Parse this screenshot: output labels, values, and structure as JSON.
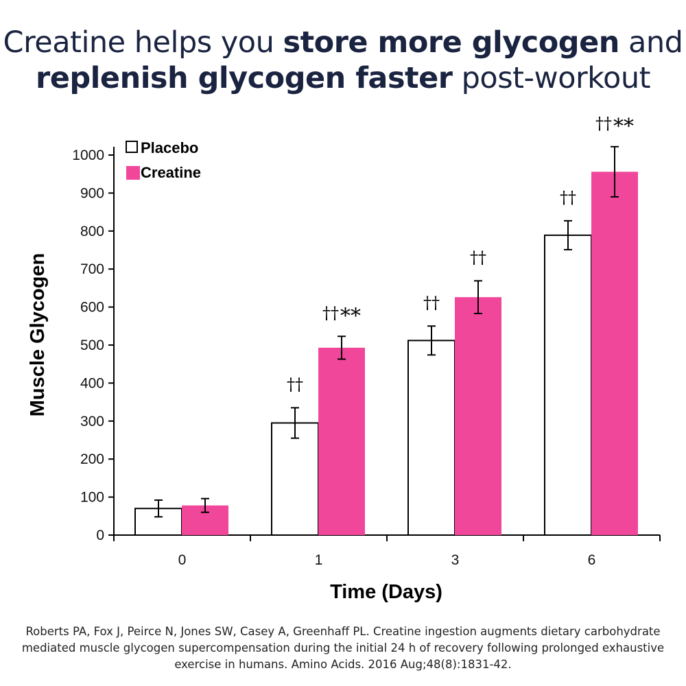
{
  "headline": {
    "part1": "Creatine helps you ",
    "bold1": "store more glycogen",
    "part2": " and",
    "bold2": "replenish glycogen faster",
    "part3": " post-workout"
  },
  "citation": "Roberts PA, Fox J, Peirce N, Jones SW, Casey A, Greenhaff PL. Creatine ingestion augments dietary carbohydrate mediated muscle glycogen supercompensation during the initial 24 h of recovery following prolonged exhaustive exercise in humans. Amino Acids. 2016 Aug;48(8):1831-42.",
  "colors": {
    "creatine": "#f0479b",
    "placebo": "#ffffff",
    "headline": "#1a2340"
  },
  "chart_data": {
    "type": "bar",
    "title": "",
    "xlabel": "Time (Days)",
    "ylabel": "Muscle Glycogen",
    "categories": [
      "0",
      "1",
      "3",
      "6"
    ],
    "ylim": [
      0,
      1000
    ],
    "yticks": [
      0,
      100,
      200,
      300,
      400,
      500,
      600,
      700,
      800,
      900,
      1000
    ],
    "legend_position": "top-left",
    "grid": false,
    "series": [
      {
        "name": "Placebo",
        "color": "#ffffff",
        "values": [
          70,
          295,
          512,
          789
        ],
        "errors": [
          22,
          40,
          38,
          38
        ]
      },
      {
        "name": "Creatine",
        "color": "#f0479b",
        "values": [
          78,
          493,
          626,
          956
        ],
        "errors": [
          18,
          30,
          43,
          66
        ]
      }
    ],
    "annotations": [
      {
        "category": "1",
        "series": "Placebo",
        "text": "††"
      },
      {
        "category": "1",
        "series": "Creatine",
        "text": "††**"
      },
      {
        "category": "3",
        "series": "Placebo",
        "text": "††"
      },
      {
        "category": "3",
        "series": "Creatine",
        "text": "††"
      },
      {
        "category": "6",
        "series": "Placebo",
        "text": "††"
      },
      {
        "category": "6",
        "series": "Creatine",
        "text": "††**"
      }
    ]
  }
}
